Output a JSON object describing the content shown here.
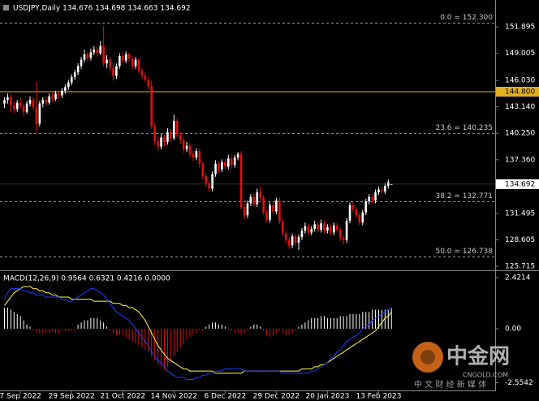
{
  "chart_data": {
    "type": "candlestick",
    "title": "USDJPY,Daily  134.676 134.698 134.663 134.692",
    "categories": [
      null,
      null,
      null,
      null,
      null,
      "7 Sep 2022",
      null,
      null,
      null,
      null,
      null,
      null,
      null,
      null,
      null,
      null,
      null,
      null,
      null,
      null,
      null,
      "29 Sep 2022",
      null,
      null,
      null,
      null,
      null,
      null,
      null,
      null,
      null,
      null,
      null,
      null,
      null,
      null,
      null,
      "21 Oct 2022",
      null,
      null,
      null,
      null,
      null,
      null,
      null,
      null,
      null,
      null,
      null,
      null,
      null,
      null,
      null,
      "14 Nov 2022",
      null,
      null,
      null,
      null,
      null,
      null,
      null,
      null,
      null,
      null,
      null,
      null,
      null,
      null,
      null,
      "6 Dec 2022",
      null,
      null,
      null,
      null,
      null,
      null,
      null,
      null,
      null,
      null,
      null,
      null,
      null,
      null,
      null,
      "29 Dec 2022",
      null,
      null,
      null,
      null,
      null,
      null,
      null,
      null,
      null,
      null,
      null,
      null,
      null,
      null,
      null,
      "20 Jan 2023",
      null,
      null,
      null,
      null,
      null,
      null,
      null,
      null,
      null,
      null,
      null,
      null,
      null,
      null,
      null,
      "13 Feb 2023",
      null,
      null,
      null,
      null
    ],
    "ohlc": [
      [
        143.5,
        144.2,
        143.0,
        143.9
      ],
      [
        143.9,
        144.6,
        143.5,
        144.2
      ],
      [
        144.2,
        144.5,
        142.6,
        143.3
      ],
      [
        143.3,
        143.7,
        142.5,
        142.9
      ],
      [
        142.9,
        143.9,
        142.6,
        143.6
      ],
      [
        143.6,
        144.1,
        142.9,
        143.2
      ],
      [
        143.2,
        143.5,
        142.1,
        142.6
      ],
      [
        142.6,
        143.8,
        142.4,
        143.5
      ],
      [
        143.5,
        144.3,
        143.2,
        143.9
      ],
      [
        143.9,
        144.2,
        142.8,
        143.1
      ],
      [
        143.1,
        145.9,
        140.4,
        141.3
      ],
      [
        141.3,
        143.8,
        141.0,
        143.5
      ],
      [
        143.5,
        144.2,
        143.1,
        143.9
      ],
      [
        143.9,
        144.3,
        143.2,
        143.6
      ],
      [
        143.6,
        144.6,
        143.4,
        144.3
      ],
      [
        144.3,
        144.7,
        143.7,
        144.0
      ],
      [
        144.0,
        144.9,
        143.8,
        144.6
      ],
      [
        144.6,
        144.9,
        144.0,
        144.4
      ],
      [
        144.4,
        145.2,
        144.1,
        144.9
      ],
      [
        144.9,
        145.6,
        144.6,
        145.3
      ],
      [
        145.3,
        146.1,
        145.0,
        145.8
      ],
      [
        145.8,
        146.7,
        145.5,
        146.4
      ],
      [
        146.4,
        147.2,
        146.1,
        146.9
      ],
      [
        146.9,
        147.9,
        146.6,
        147.6
      ],
      [
        147.6,
        148.6,
        147.3,
        148.3
      ],
      [
        148.3,
        149.4,
        148.0,
        148.9
      ],
      [
        148.9,
        149.2,
        148.1,
        148.5
      ],
      [
        148.5,
        149.5,
        148.2,
        149.1
      ],
      [
        149.1,
        149.8,
        148.8,
        149.4
      ],
      [
        149.4,
        149.7,
        148.6,
        149.0
      ],
      [
        149.0,
        150.3,
        148.8,
        149.8
      ],
      [
        149.8,
        152.0,
        147.6,
        147.9
      ],
      [
        147.9,
        148.8,
        147.4,
        148.3
      ],
      [
        148.3,
        148.6,
        147.0,
        147.4
      ],
      [
        147.4,
        147.8,
        146.0,
        146.5
      ],
      [
        146.5,
        147.9,
        146.2,
        147.6
      ],
      [
        147.6,
        149.0,
        147.3,
        148.7
      ],
      [
        148.7,
        149.1,
        147.9,
        148.2
      ],
      [
        148.2,
        149.2,
        147.9,
        148.9
      ],
      [
        148.9,
        149.1,
        148.0,
        148.4
      ],
      [
        148.4,
        148.7,
        147.2,
        147.6
      ],
      [
        147.6,
        148.6,
        147.3,
        148.3
      ],
      [
        148.3,
        148.5,
        146.8,
        147.1
      ],
      [
        147.1,
        147.4,
        146.2,
        146.6
      ],
      [
        146.6,
        146.9,
        145.8,
        146.1
      ],
      [
        146.1,
        146.4,
        145.0,
        145.4
      ],
      [
        145.4,
        146.0,
        140.7,
        141.0
      ],
      [
        141.0,
        141.4,
        139.0,
        139.4
      ],
      [
        139.4,
        139.9,
        138.3,
        138.8
      ],
      [
        138.8,
        140.2,
        138.5,
        139.8
      ],
      [
        139.8,
        140.1,
        138.9,
        139.3
      ],
      [
        139.3,
        140.8,
        139.0,
        140.4
      ],
      [
        140.4,
        140.7,
        139.3,
        139.7
      ],
      [
        139.7,
        142.3,
        139.5,
        141.6
      ],
      [
        141.6,
        141.9,
        139.8,
        140.1
      ],
      [
        140.1,
        140.4,
        139.1,
        139.5
      ],
      [
        139.5,
        139.8,
        138.1,
        138.5
      ],
      [
        138.5,
        139.3,
        138.2,
        138.9
      ],
      [
        138.9,
        139.2,
        137.6,
        138.0
      ],
      [
        138.0,
        138.3,
        137.2,
        137.6
      ],
      [
        137.6,
        138.6,
        137.3,
        138.3
      ],
      [
        138.3,
        138.6,
        136.5,
        136.9
      ],
      [
        136.9,
        137.2,
        135.2,
        135.6
      ],
      [
        135.6,
        135.9,
        134.4,
        134.8
      ],
      [
        134.8,
        135.1,
        133.8,
        134.2
      ],
      [
        134.2,
        136.1,
        133.9,
        135.8
      ],
      [
        135.8,
        137.3,
        135.5,
        136.9
      ],
      [
        136.9,
        137.2,
        135.9,
        136.3
      ],
      [
        136.3,
        137.4,
        136.0,
        137.1
      ],
      [
        137.1,
        137.4,
        136.2,
        136.6
      ],
      [
        136.6,
        137.9,
        136.3,
        137.5
      ],
      [
        137.5,
        137.8,
        136.4,
        136.8
      ],
      [
        136.8,
        137.9,
        136.5,
        137.6
      ],
      [
        137.6,
        138.2,
        137.3,
        138.0
      ],
      [
        138.0,
        138.3,
        131.9,
        132.2
      ],
      [
        132.2,
        132.6,
        130.9,
        131.3
      ],
      [
        131.3,
        132.9,
        131.0,
        132.6
      ],
      [
        132.6,
        133.6,
        132.3,
        133.3
      ],
      [
        133.3,
        133.6,
        132.2,
        132.5
      ],
      [
        132.5,
        134.2,
        132.2,
        133.8
      ],
      [
        133.8,
        134.4,
        132.9,
        133.2
      ],
      [
        133.2,
        133.5,
        131.3,
        131.6
      ],
      [
        131.6,
        131.9,
        130.5,
        130.8
      ],
      [
        130.8,
        132.7,
        130.5,
        132.4
      ],
      [
        132.4,
        132.7,
        131.4,
        131.7
      ],
      [
        131.7,
        133.2,
        131.4,
        132.9
      ],
      [
        132.9,
        133.2,
        130.3,
        130.6
      ],
      [
        130.6,
        130.9,
        129.0,
        129.3
      ],
      [
        129.3,
        129.6,
        128.2,
        128.6
      ],
      [
        128.6,
        128.9,
        127.6,
        128.0
      ],
      [
        128.0,
        129.3,
        127.7,
        129.0
      ],
      [
        129.0,
        129.3,
        127.9,
        128.3
      ],
      [
        128.3,
        129.2,
        127.5,
        128.9
      ],
      [
        128.9,
        129.9,
        128.6,
        129.6
      ],
      [
        129.6,
        130.5,
        129.3,
        130.1
      ],
      [
        130.1,
        130.4,
        129.1,
        129.4
      ],
      [
        129.4,
        130.1,
        129.1,
        129.8
      ],
      [
        129.8,
        130.7,
        129.5,
        130.3
      ],
      [
        130.3,
        130.6,
        129.4,
        129.7
      ],
      [
        129.7,
        130.8,
        129.4,
        130.4
      ],
      [
        130.4,
        130.7,
        129.3,
        129.6
      ],
      [
        129.6,
        130.3,
        129.3,
        130.0
      ],
      [
        130.0,
        130.3,
        129.1,
        129.4
      ],
      [
        129.4,
        130.5,
        129.1,
        130.2
      ],
      [
        130.2,
        130.5,
        129.4,
        129.7
      ],
      [
        129.7,
        130.0,
        128.5,
        128.8
      ],
      [
        128.8,
        129.1,
        128.1,
        128.6
      ],
      [
        128.6,
        131.0,
        128.3,
        130.7
      ],
      [
        130.7,
        132.7,
        130.4,
        132.4
      ],
      [
        132.4,
        132.7,
        131.6,
        131.9
      ],
      [
        131.9,
        132.2,
        131.0,
        131.3
      ],
      [
        131.3,
        131.6,
        130.2,
        130.5
      ],
      [
        130.5,
        131.9,
        130.2,
        131.6
      ],
      [
        131.6,
        133.1,
        131.3,
        132.8
      ],
      [
        132.8,
        133.6,
        132.5,
        133.3
      ],
      [
        133.3,
        133.6,
        132.6,
        132.9
      ],
      [
        132.9,
        134.1,
        132.6,
        133.8
      ],
      [
        133.8,
        134.4,
        133.5,
        134.1
      ],
      [
        134.1,
        134.4,
        133.6,
        133.9
      ],
      [
        133.9,
        134.8,
        133.6,
        134.5
      ],
      [
        134.5,
        135.2,
        134.2,
        134.9
      ],
      [
        134.676,
        134.698,
        134.663,
        134.692
      ]
    ],
    "up_color": "#ffffff",
    "down_color": "#e01010",
    "ylim": [
      125.36,
      154.65
    ],
    "yticks": [
      151.895,
      149.005,
      {
        "value": 146.03,
        "label": "146.030"
      },
      {
        "value": 143.14,
        "label": "143.140"
      },
      {
        "value": 140.25,
        "label": "140.250"
      },
      {
        "value": 137.36,
        "label": "137.360"
      },
      131.495,
      128.605,
      125.715
    ],
    "levels": [
      {
        "value": 152.3,
        "label": "0.0 = 152.300"
      },
      {
        "value": 140.235,
        "label": "23.6 = 140.235"
      },
      {
        "value": 132.771,
        "label": "38.2 = 132.771"
      },
      {
        "value": 126.738,
        "label": "50.0 = 126.738"
      }
    ],
    "hline": {
      "value": 144.8,
      "label": "144.800",
      "color": "#e0b020"
    },
    "last_price": 134.692,
    "macd": {
      "label": "MACD(12,26,9) 0.9564 0.6321 0.4216 0.0000",
      "y2lim": [
        -2.88,
        2.69
      ],
      "y2ticks": [
        2.4214,
        {
          "value": 0,
          "label": "0.00"
        },
        -2.5542
      ],
      "pos_color": "#ffffff",
      "neg_color": "#e01010",
      "histogram": [
        1.0,
        1.0,
        0.9,
        0.8,
        0.7,
        0.6,
        0.4,
        0.2,
        0.1,
        -0.1,
        -0.2,
        -0.2,
        -0.2,
        -0.2,
        -0.2,
        -0.1,
        -0.2,
        -0.2,
        -0.1,
        -0.1,
        -0.1,
        -0.1,
        -0.1,
        0.2,
        0.3,
        0.4,
        0.4,
        0.5,
        0.5,
        0.5,
        0.4,
        0.3,
        0.1,
        -0.1,
        -0.2,
        -0.3,
        -0.3,
        -0.3,
        -0.4,
        -0.5,
        -0.6,
        -0.7,
        -0.8,
        -0.9,
        -1.0,
        -1.1,
        -1.3,
        -1.5,
        -1.7,
        -1.8,
        -1.9,
        -1.8,
        -1.6,
        -1.3,
        -1.1,
        -0.9,
        -0.7,
        -0.5,
        -0.4,
        -0.3,
        -0.2,
        -0.1,
        -0.1,
        0.1,
        0.2,
        0.3,
        0.3,
        0.2,
        0.2,
        0.1,
        0.0,
        -0.1,
        -0.2,
        -0.2,
        -0.3,
        -0.2,
        -0.1,
        0.1,
        0.2,
        0.2,
        0.1,
        -0.1,
        -0.3,
        -0.4,
        -0.3,
        -0.2,
        -0.1,
        -0.2,
        -0.3,
        -0.3,
        -0.2,
        -0.1,
        0.1,
        0.2,
        0.3,
        0.4,
        0.5,
        0.5,
        0.5,
        0.6,
        0.6,
        0.5,
        0.5,
        0.5,
        0.5,
        0.6,
        0.6,
        0.6,
        0.7,
        0.7,
        0.7,
        0.7,
        0.8,
        0.8,
        0.8,
        0.9,
        0.9,
        0.9,
        0.9,
        0.9,
        0.9,
        0.96
      ],
      "lines": [
        {
          "color": "#ffff40",
          "values": [
            1.1,
            1.3,
            1.5,
            1.7,
            1.8,
            1.9,
            2.0,
            2.0,
            2.0,
            1.9,
            1.9,
            1.8,
            1.8,
            1.7,
            1.7,
            1.6,
            1.6,
            1.5,
            1.5,
            1.5,
            1.5,
            1.4,
            1.4,
            1.4,
            1.4,
            1.4,
            1.4,
            1.4,
            1.3,
            1.3,
            1.3,
            1.3,
            1.3,
            1.3,
            1.2,
            1.2,
            1.2,
            1.1,
            1.1,
            1.0,
            1.0,
            0.9,
            0.8,
            0.6,
            0.4,
            0.1,
            -0.2,
            -0.5,
            -0.8,
            -1.0,
            -1.2,
            -1.4,
            -1.5,
            -1.6,
            -1.7,
            -1.8,
            -1.9,
            -1.9,
            -2.0,
            -2.0,
            -2.0,
            -2.0,
            -2.0,
            -2.0,
            -2.0,
            -2.0,
            -2.1,
            -2.1,
            -2.1,
            -2.1,
            -2.1,
            -2.1,
            -2.1,
            -2.1,
            -2.1,
            -2.0,
            -2.0,
            -2.0,
            -2.0,
            -2.0,
            -2.0,
            -2.0,
            -2.0,
            -2.0,
            -2.0,
            -2.0,
            -2.0,
            -2.0,
            -2.0,
            -2.0,
            -2.0,
            -2.0,
            -2.0,
            -1.9,
            -1.9,
            -1.9,
            -1.9,
            -1.8,
            -1.8,
            -1.7,
            -1.7,
            -1.6,
            -1.5,
            -1.4,
            -1.3,
            -1.2,
            -1.1,
            -1.0,
            -0.9,
            -0.8,
            -0.7,
            -0.6,
            -0.5,
            -0.4,
            -0.3,
            -0.2,
            -0.1,
            0.1,
            0.3,
            0.5,
            0.6,
            0.8
          ]
        },
        {
          "color": "#2040ff",
          "values": [
            1.4,
            1.7,
            1.9,
            1.9,
            1.9,
            1.9,
            1.8,
            1.8,
            1.7,
            1.7,
            1.6,
            1.6,
            1.6,
            1.5,
            1.5,
            1.5,
            1.5,
            1.5,
            1.4,
            1.4,
            1.3,
            1.3,
            1.4,
            1.5,
            1.6,
            1.7,
            1.8,
            1.9,
            1.9,
            1.8,
            1.7,
            1.6,
            1.4,
            1.2,
            1.0,
            0.8,
            0.7,
            0.6,
            0.5,
            0.4,
            0.2,
            0.0,
            -0.2,
            -0.4,
            -0.6,
            -0.8,
            -1.1,
            -1.3,
            -1.5,
            -1.6,
            -1.8,
            -2.0,
            -2.1,
            -2.2,
            -2.3,
            -2.3,
            -2.3,
            -2.4,
            -2.4,
            -2.4,
            -2.3,
            -2.3,
            -2.2,
            -2.2,
            -2.1,
            -2.1,
            -2.0,
            -2.0,
            -2.0,
            -1.9,
            -1.9,
            -1.9,
            -1.9,
            -1.9,
            -1.9,
            -2.0,
            -2.0,
            -2.0,
            -2.0,
            -2.0,
            -2.0,
            -2.0,
            -2.0,
            -2.0,
            -2.0,
            -2.0,
            -2.0,
            -2.1,
            -2.1,
            -2.1,
            -2.1,
            -2.1,
            -2.1,
            -2.1,
            -2.1,
            -2.1,
            -2.0,
            -2.0,
            -1.9,
            -1.8,
            -1.7,
            -1.6,
            -1.4,
            -1.3,
            -1.1,
            -1.0,
            -0.8,
            -0.6,
            -0.5,
            -0.4,
            -0.3,
            -0.2,
            0.0,
            0.1,
            0.2,
            0.4,
            0.5,
            0.6,
            0.7,
            0.8,
            0.9,
            1.0
          ]
        }
      ]
    },
    "watermark": {
      "name": "中金网",
      "site": "CNGOLD.COM",
      "slogan": "中 文 财 经 新 媒 体"
    }
  }
}
